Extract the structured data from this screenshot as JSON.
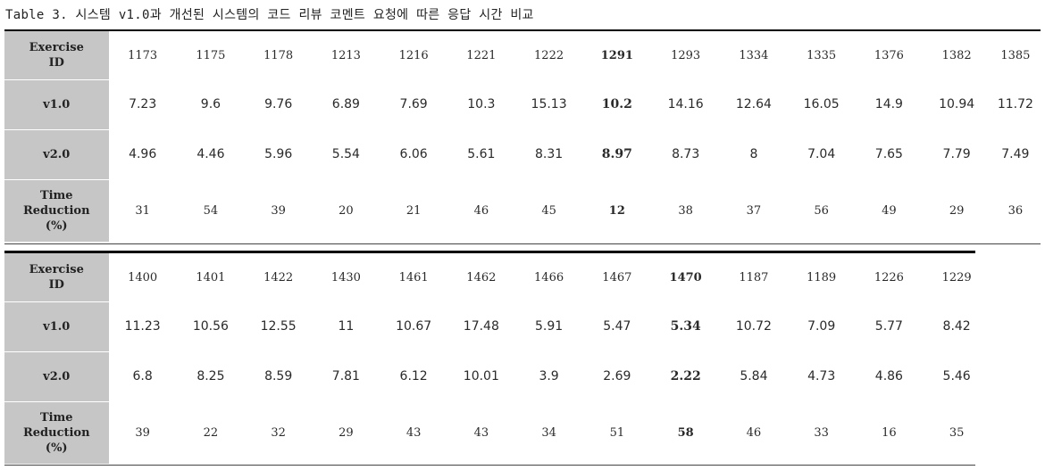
{
  "caption": "Table 3. 시스템 v1.0과 개선된 시스템의 코드 리뷰 코멘트 요청에 따른 응답 시간 비교",
  "row_labels": {
    "exercise": [
      "Exercise",
      "ID"
    ],
    "v1": "v1.0",
    "v2": "v2.0",
    "reduction": [
      "Time",
      "Reduction",
      "(%)"
    ]
  },
  "block1": {
    "ids": [
      "1173",
      "1175",
      "1178",
      "1213",
      "1216",
      "1221",
      "1222",
      "1291",
      "1293",
      "1334",
      "1335",
      "1376",
      "1382",
      "1385"
    ],
    "v1": [
      "7.23",
      "9.6",
      "9.76",
      "6.89",
      "7.69",
      "10.3",
      "15.13",
      "10.2",
      "14.16",
      "12.64",
      "16.05",
      "14.9",
      "10.94",
      "11.72"
    ],
    "v2": [
      "4.96",
      "4.46",
      "5.96",
      "5.54",
      "6.06",
      "5.61",
      "8.31",
      "8.97",
      "8.73",
      "8",
      "7.04",
      "7.65",
      "7.79",
      "7.49"
    ],
    "reduction": [
      "31",
      "54",
      "39",
      "20",
      "21",
      "46",
      "45",
      "12",
      "38",
      "37",
      "56",
      "49",
      "29",
      "36"
    ]
  },
  "block2": {
    "ids": [
      "1400",
      "1401",
      "1422",
      "1430",
      "1461",
      "1462",
      "1466",
      "1467",
      "1470",
      "1187",
      "1189",
      "1226",
      "1229"
    ],
    "v1": [
      "11.23",
      "10.56",
      "12.55",
      "11",
      "10.67",
      "17.48",
      "5.91",
      "5.47",
      "5.34",
      "10.72",
      "7.09",
      "5.77",
      "8.42"
    ],
    "v2": [
      "6.8",
      "8.25",
      "8.59",
      "7.81",
      "6.12",
      "10.01",
      "3.9",
      "2.69",
      "2.22",
      "5.84",
      "4.73",
      "4.86",
      "5.46"
    ],
    "reduction": [
      "39",
      "22",
      "32",
      "29",
      "43",
      "43",
      "34",
      "51",
      "58",
      "46",
      "33",
      "16",
      "35"
    ]
  },
  "highlight": {
    "block1_column": 7,
    "block2_column": 8
  }
}
